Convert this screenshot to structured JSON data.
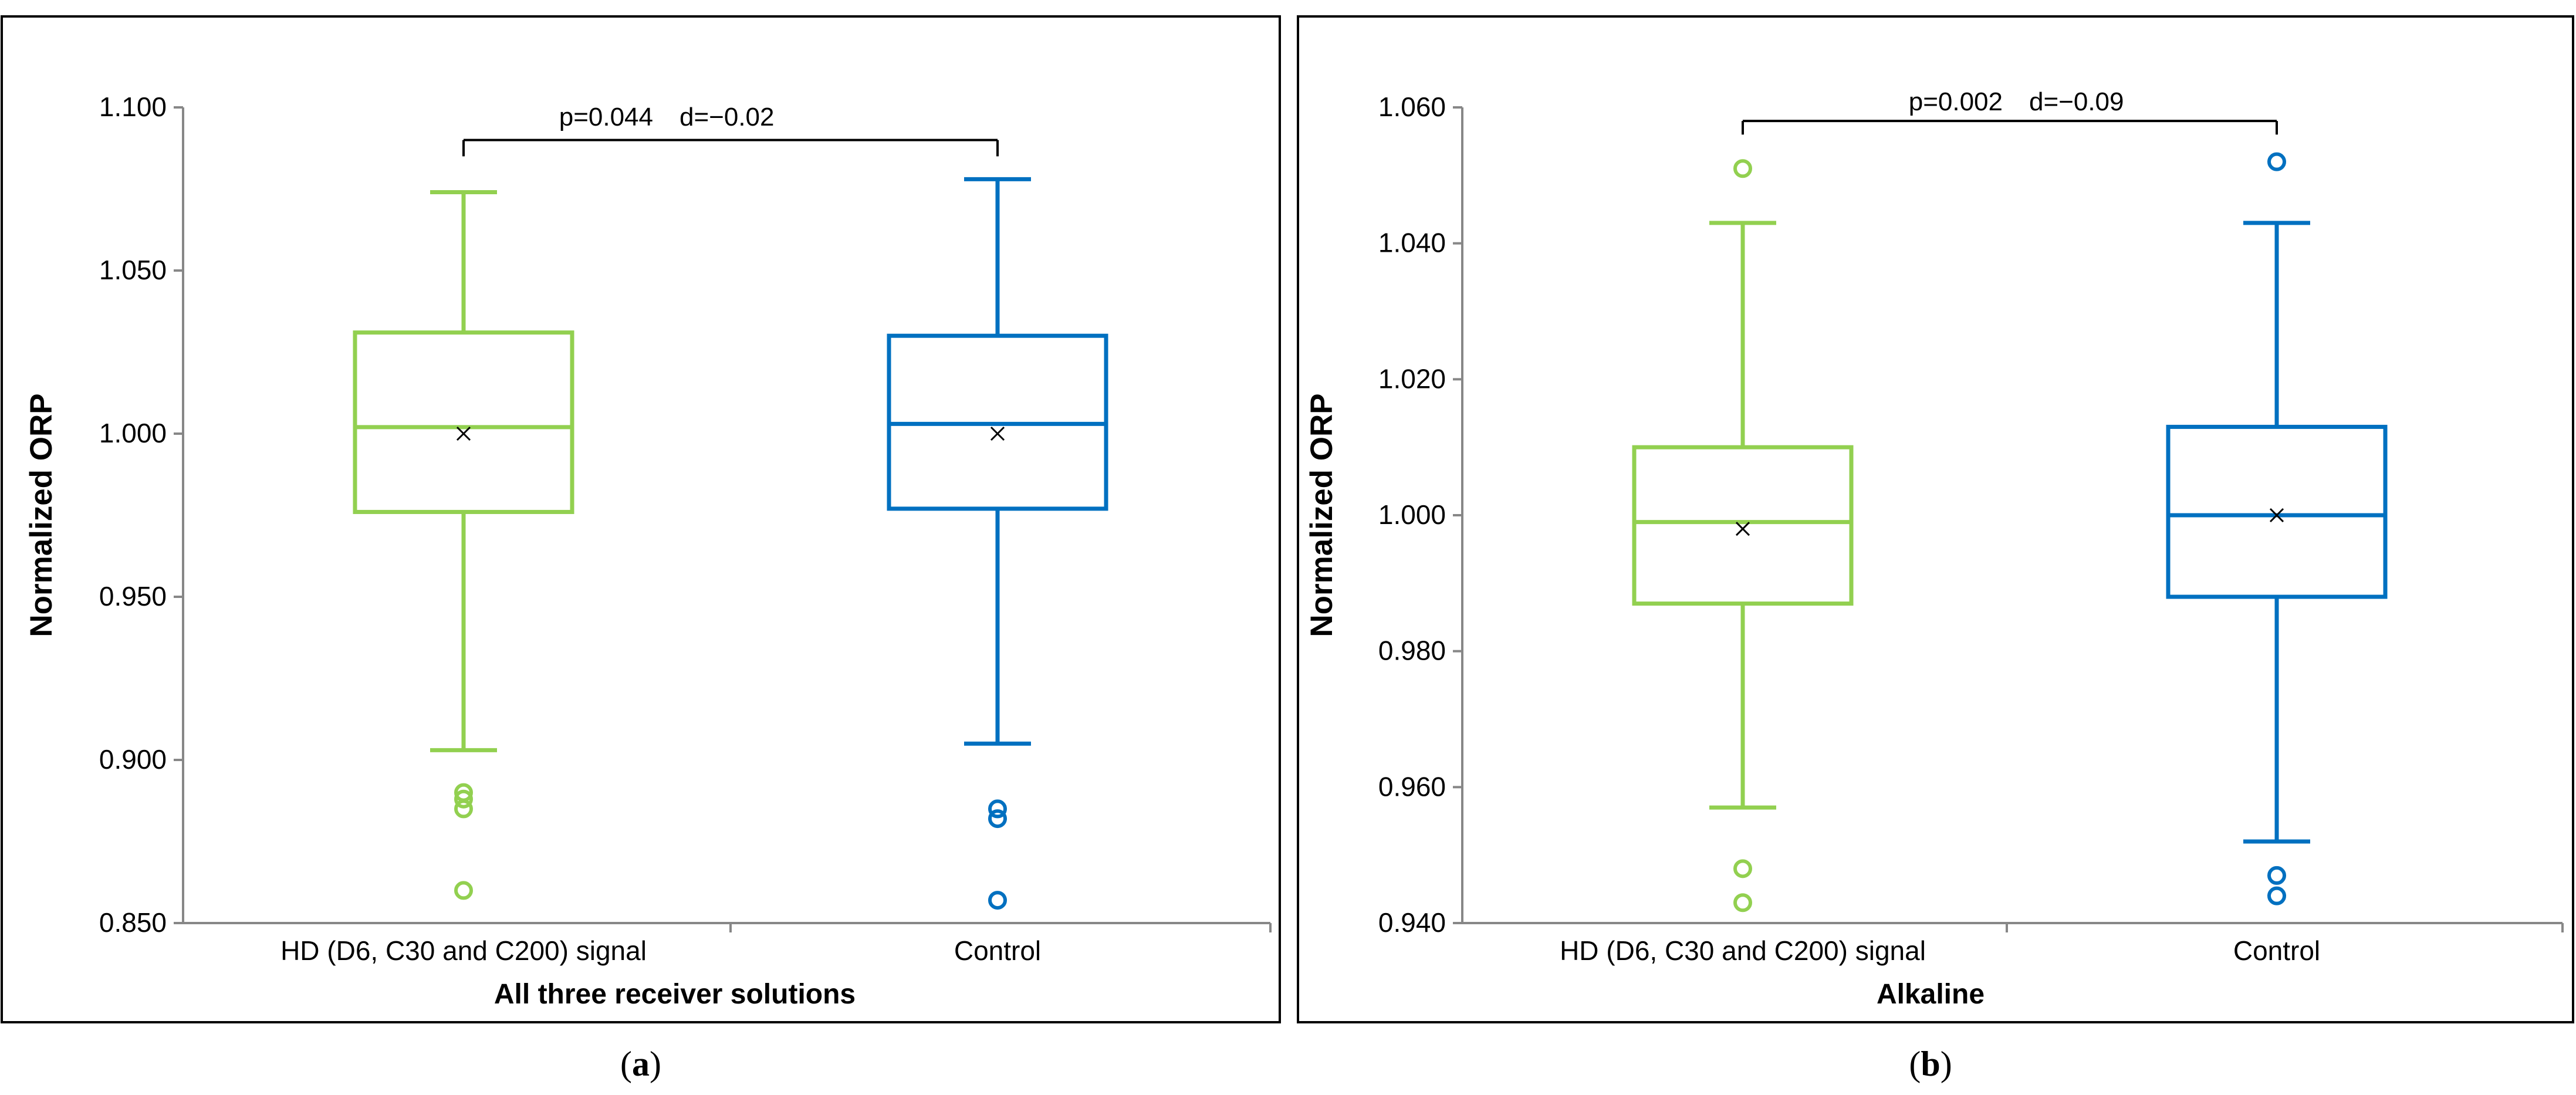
{
  "colors": {
    "treatment": "#92d050",
    "control": "#0070c0",
    "axis": "#878787",
    "frame": "#000000"
  },
  "panels": [
    {
      "caption_letter": "a",
      "ylabel": "Normalized ORP",
      "xlabel": "All three receiver solutions",
      "y_tick_labels": [
        "0.850",
        "0.900",
        "0.950",
        "1.000",
        "1.050",
        "1.100"
      ],
      "significance": {
        "p_label": "p=0.044",
        "d_label": "d=−0.02"
      }
    },
    {
      "caption_letter": "b",
      "ylabel": "Normalized ORP",
      "xlabel": "Alkaline",
      "y_tick_labels": [
        "0.940",
        "0.960",
        "0.980",
        "1.000",
        "1.020",
        "1.040",
        "1.060"
      ],
      "significance": {
        "p_label": "p=0.002",
        "d_label": "d=−0.09"
      }
    }
  ],
  "chart_data": [
    {
      "type": "box",
      "title": "",
      "xlabel": "All three receiver solutions",
      "ylabel": "Normalized ORP",
      "ylim": [
        0.85,
        1.1
      ],
      "yticks": [
        0.85,
        0.9,
        0.95,
        1.0,
        1.05,
        1.1
      ],
      "categories": [
        "HD (D6, C30 and C200) signal",
        "Control"
      ],
      "grid": false,
      "boxes": [
        {
          "category": "HD (D6, C30 and C200) signal",
          "color": "#92d050",
          "whisker_low": 0.903,
          "q1": 0.976,
          "median": 1.002,
          "q3": 1.031,
          "whisker_high": 1.074,
          "mean": 1.0,
          "outliers": [
            0.89,
            0.888,
            0.885,
            0.86
          ]
        },
        {
          "category": "Control",
          "color": "#0070c0",
          "whisker_low": 0.905,
          "q1": 0.977,
          "median": 1.003,
          "q3": 1.03,
          "whisker_high": 1.078,
          "mean": 1.0,
          "outliers": [
            0.885,
            0.882,
            0.857
          ]
        }
      ],
      "annotation": {
        "text": "p=0.044   d=−0.02",
        "p": 0.044,
        "d": -0.02,
        "bracket_y": 1.09,
        "bracket_tick_bottom": 1.085
      }
    },
    {
      "type": "box",
      "title": "",
      "xlabel": "Alkaline",
      "ylabel": "Normalized ORP",
      "ylim": [
        0.94,
        1.06
      ],
      "yticks": [
        0.94,
        0.96,
        0.98,
        1.0,
        1.02,
        1.04,
        1.06
      ],
      "categories": [
        "HD (D6, C30 and C200) signal",
        "Control"
      ],
      "grid": false,
      "boxes": [
        {
          "category": "HD (D6, C30 and C200) signal",
          "color": "#92d050",
          "whisker_low": 0.957,
          "q1": 0.987,
          "median": 0.999,
          "q3": 1.01,
          "whisker_high": 1.043,
          "mean": 0.998,
          "outliers": [
            1.051,
            0.948,
            0.943
          ]
        },
        {
          "category": "Control",
          "color": "#0070c0",
          "whisker_low": 0.952,
          "q1": 0.988,
          "median": 1.0,
          "q3": 1.013,
          "whisker_high": 1.043,
          "mean": 1.0,
          "outliers": [
            1.052,
            0.947,
            0.944
          ]
        }
      ],
      "annotation": {
        "text": "p=0.002   d=−0.09",
        "p": 0.002,
        "d": -0.09,
        "bracket_y": 1.058,
        "bracket_tick_bottom": 1.056
      }
    }
  ]
}
